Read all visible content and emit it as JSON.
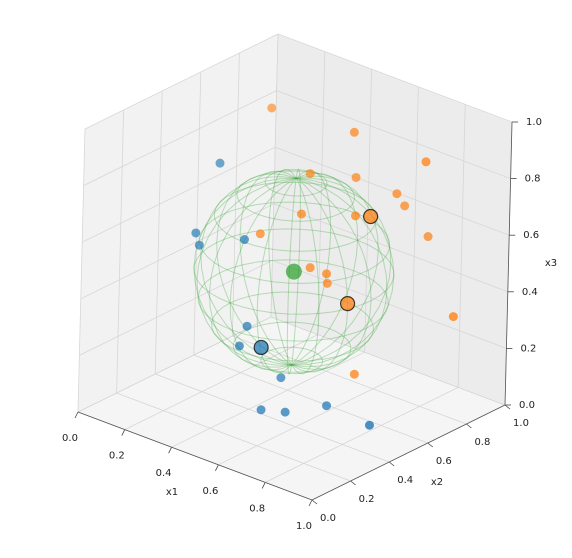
{
  "chart_data": {
    "type": "scatter3d",
    "xlabel": "x1",
    "ylabel": "x2",
    "zlabel": "x3",
    "xlim": [
      0,
      1
    ],
    "ylim": [
      0,
      1
    ],
    "zlim": [
      0,
      1
    ],
    "xticks": [
      {
        "value": 0,
        "label": "0.0"
      },
      0.2,
      0.4,
      0.6,
      0.8,
      {
        "value": 1,
        "label": "1.0"
      }
    ],
    "yticks": [
      {
        "value": 0,
        "label": "0.0"
      },
      0.2,
      0.4,
      0.6,
      0.8,
      {
        "value": 1,
        "label": "1.0"
      }
    ],
    "zticks": [
      {
        "value": 0,
        "label": "0.0"
      },
      0.2,
      0.4,
      0.6,
      0.8,
      {
        "value": 1,
        "label": "1.0"
      }
    ],
    "grid": true,
    "depthshade": true,
    "series": [
      {
        "color": "#1f77b4",
        "size": 4.5,
        "x1": [
          0.22,
          0.23,
          0.23,
          0.38,
          0.4,
          0.41,
          0.46,
          0.46,
          0.53,
          0.64,
          0.84
        ],
        "x2": [
          0.44,
          0.31,
          0.33,
          0.38,
          0.38,
          0.33,
          0.49,
          0.39,
          0.43,
          0.51,
          0.49
        ],
        "x3": [
          0.8,
          0.6,
          0.55,
          0.6,
          0.3,
          0.25,
          0.1,
          0.02,
          0.02,
          0.05,
          0.05
        ]
      },
      {
        "color": "#ff7f0e",
        "size": 4.5,
        "x1": [
          0.28,
          0.6,
          0.85,
          0.49,
          0.62,
          0.73,
          0.74,
          0.53,
          0.67,
          0.39,
          0.81,
          0.54,
          0.61,
          0.59,
          0.99,
          0.69
        ],
        "x2": [
          0.63,
          0.67,
          0.74,
          0.58,
          0.66,
          0.74,
          0.77,
          0.49,
          0.6,
          0.45,
          0.81,
          0.53,
          0.53,
          0.56,
          0.73,
          0.59
        ],
        "x3": [
          0.95,
          0.95,
          0.9,
          0.8,
          0.8,
          0.75,
          0.7,
          0.7,
          0.7,
          0.6,
          0.6,
          0.5,
          0.5,
          0.45,
          0.4,
          0.15
        ]
      },
      {
        "color": "#ff7f0e",
        "edgecolor": "#000000",
        "size": 7,
        "x1": [
          0.67,
          0.71
        ],
        "x2": [
          0.57,
          0.63
        ],
        "x3": [
          0.4,
          0.7
        ]
      },
      {
        "color": "#1f77b4",
        "edgecolor": "#000000",
        "size": 7,
        "x1": [
          0.47
        ],
        "x2": [
          0.37
        ],
        "x3": [
          0.25
        ]
      },
      {
        "color": "#2ca02c",
        "size": 8,
        "x1": [
          0.52
        ],
        "x2": [
          0.47
        ],
        "x3": [
          0.5
        ]
      }
    ],
    "sphere": {
      "center": [
        0.52,
        0.47,
        0.5
      ],
      "radius": 0.33,
      "color": "#2ca02c"
    }
  }
}
